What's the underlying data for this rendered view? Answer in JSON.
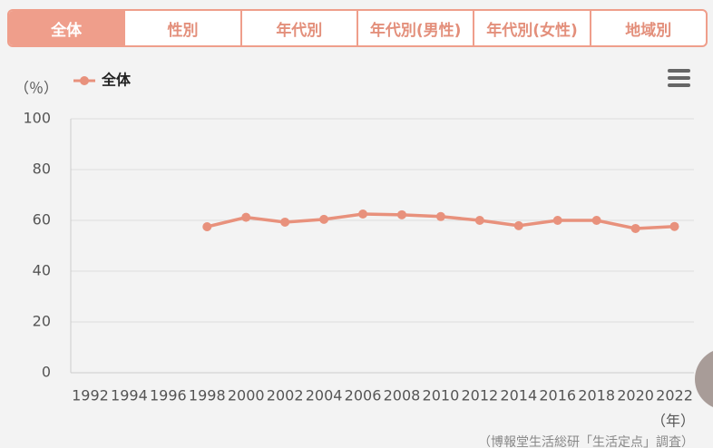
{
  "tabs": [
    "全体",
    "性別",
    "年代別",
    "年代別(男性)",
    "年代別(女性)",
    "地域別"
  ],
  "chart_data": {
    "type": "line",
    "y_label": "（％）",
    "x_label": "（年）",
    "source": "（博報堂生活総研「生活定点」調査）",
    "categories": [
      "1992",
      "1994",
      "1996",
      "1998",
      "2000",
      "2002",
      "2004",
      "2006",
      "2008",
      "2010",
      "2012",
      "2014",
      "2016",
      "2018",
      "2020",
      "2022"
    ],
    "series": [
      {
        "name": "全体",
        "color": "#e8917c",
        "values": [
          null,
          null,
          null,
          57.5,
          61.2,
          59.3,
          60.4,
          62.5,
          62.2,
          61.5,
          60,
          57.9,
          60,
          60,
          56.8,
          57.6
        ]
      }
    ],
    "ylim": [
      0,
      100
    ],
    "yticks": [
      0,
      20,
      40,
      60,
      80,
      100
    ],
    "grid": true
  }
}
